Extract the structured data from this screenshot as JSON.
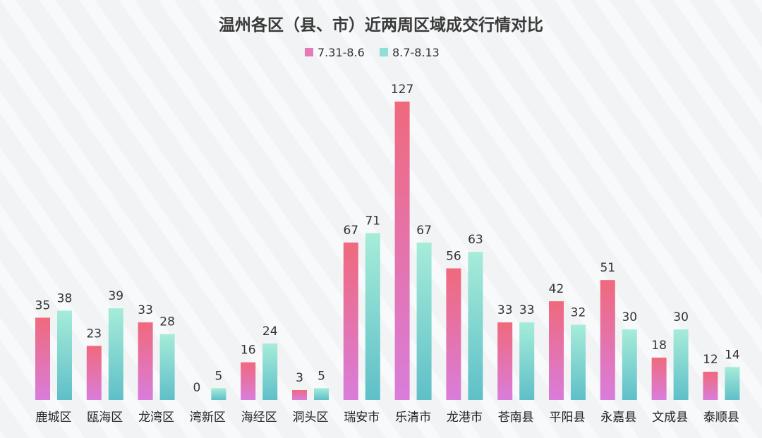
{
  "chart_data": {
    "type": "bar",
    "title": "温州各区（县、市）近两周区域成交行情对比",
    "categories": [
      "鹿城区",
      "瓯海区",
      "龙湾区",
      "湾新区",
      "海经区",
      "洞头区",
      "瑞安市",
      "乐清市",
      "龙港市",
      "苍南县",
      "平阳县",
      "永嘉县",
      "文成县",
      "泰顺县"
    ],
    "series": [
      {
        "name": "7.31-8.6",
        "values": [
          35,
          23,
          33,
          0,
          16,
          3,
          67,
          127,
          56,
          33,
          42,
          51,
          18,
          12
        ],
        "color_top": "#f0697c",
        "color_bottom": "#d97ddb"
      },
      {
        "name": "8.7-8.13",
        "values": [
          38,
          39,
          28,
          5,
          24,
          5,
          71,
          67,
          63,
          33,
          32,
          30,
          30,
          14
        ],
        "color_top": "#a6ecd9",
        "color_bottom": "#5fbfc8"
      }
    ],
    "xlabel": "",
    "ylabel": "",
    "ylim": [
      0,
      127
    ],
    "grid": false,
    "legend_position": "top-center",
    "background_color": "#f1f3f5"
  }
}
